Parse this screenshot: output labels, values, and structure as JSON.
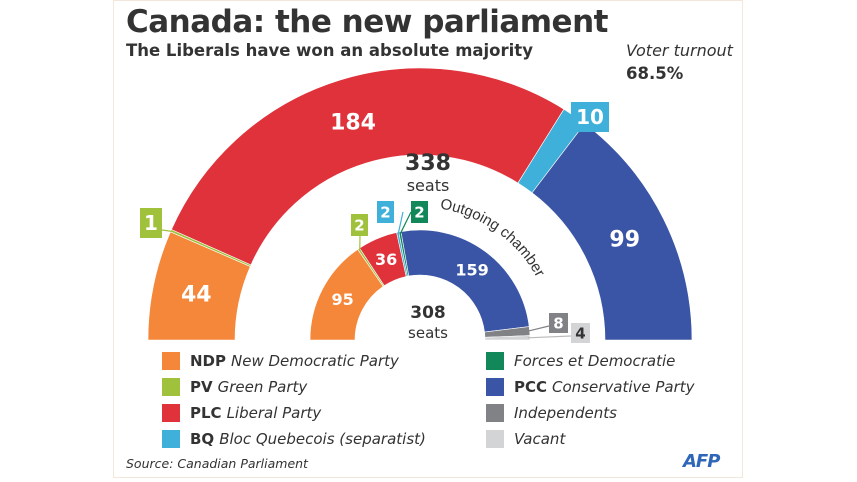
{
  "title": "Canada: the new parliament",
  "subtitle": "The Liberals have won an absolute majority",
  "turnout": {
    "label": "Voter turnout",
    "value": "68.5%"
  },
  "chart_data": [
    {
      "type": "pie",
      "variant": "semicircle-donut",
      "total_label": "338",
      "total_unit": "seats",
      "categories": [
        "NDP",
        "PV",
        "PLC",
        "BQ",
        "PCC"
      ],
      "values": [
        44,
        1,
        184,
        10,
        99
      ],
      "colors": [
        "#f5873a",
        "#9fc13b",
        "#e0323a",
        "#3fb0d9",
        "#3a55a5"
      ]
    },
    {
      "type": "pie",
      "variant": "semicircle-donut",
      "title": "Outgoing chamber",
      "total_label": "308",
      "total_unit": "seats",
      "categories": [
        "NDP",
        "PV",
        "PLC",
        "BQ",
        "Forces et Democratie",
        "PCC",
        "Independents",
        "Vacant"
      ],
      "values": [
        95,
        2,
        36,
        2,
        2,
        159,
        8,
        4
      ],
      "colors": [
        "#f5873a",
        "#9fc13b",
        "#e0323a",
        "#3fb0d9",
        "#11875a",
        "#3a55a5",
        "#808285",
        "#d3d4d6"
      ]
    }
  ],
  "legend": [
    {
      "abbr": "NDP",
      "name": "New Democratic Party",
      "color": "#f5873a"
    },
    {
      "abbr": "PV",
      "name": "Green Party",
      "color": "#9fc13b"
    },
    {
      "abbr": "PLC",
      "name": "Liberal Party",
      "color": "#e0323a"
    },
    {
      "abbr": "BQ",
      "name": "Bloc Quebecois (separatist)",
      "color": "#3fb0d9"
    },
    {
      "abbr": "",
      "name": "Forces et Democratie",
      "color": "#11875a"
    },
    {
      "abbr": "PCC",
      "name": "Conservative Party",
      "color": "#3a55a5"
    },
    {
      "abbr": "",
      "name": "Independents",
      "color": "#808285"
    },
    {
      "abbr": "",
      "name": "Vacant",
      "color": "#d3d4d6"
    }
  ],
  "source": "Source: Canadian Parliament",
  "logo": "AFP"
}
